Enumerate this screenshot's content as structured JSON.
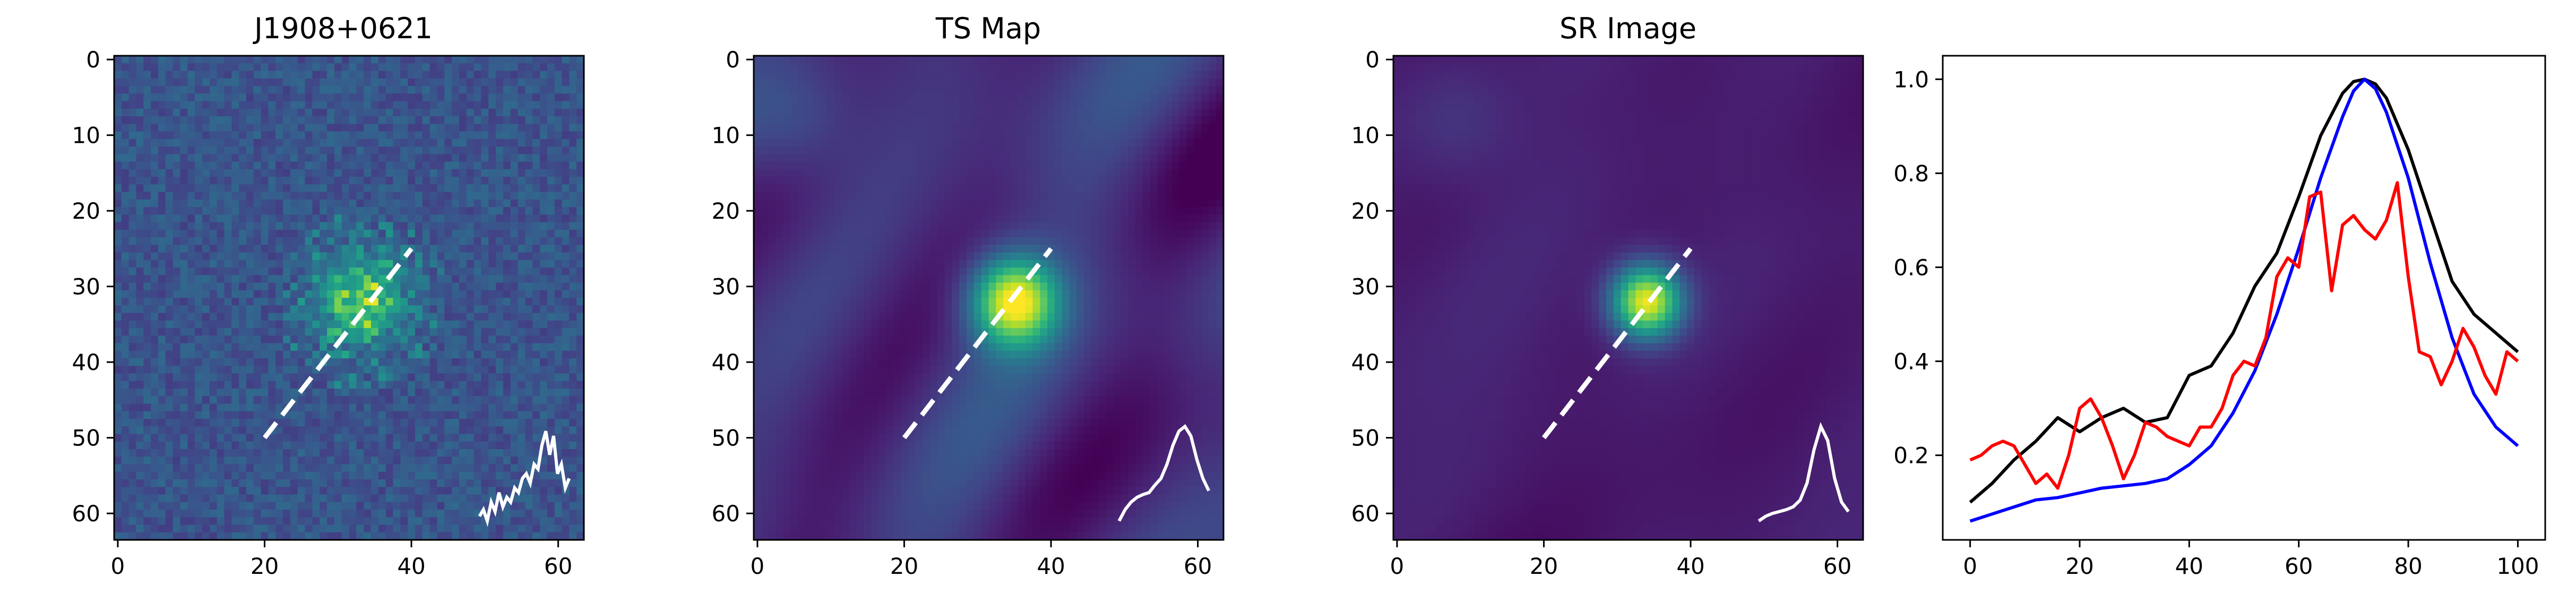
{
  "chart_data": [
    {
      "type": "heatmap",
      "title": "J1908+0621",
      "grid_size": 64,
      "colormap": "viridis",
      "style": "noisy counts",
      "source_center": [
        33,
        32
      ],
      "x_ticks": [
        0,
        20,
        40,
        60
      ],
      "y_ticks": [
        0,
        10,
        20,
        30,
        40,
        50,
        60
      ],
      "dashed_line": {
        "from": [
          20,
          50
        ],
        "to": [
          40,
          25
        ]
      },
      "inset_profile": [
        0.05,
        0.12,
        0.0,
        0.2,
        0.1,
        0.3,
        0.15,
        0.25,
        0.2,
        0.35,
        0.3,
        0.45,
        0.5,
        0.4,
        0.6,
        0.55,
        0.8,
        0.95,
        0.7,
        0.9,
        0.5,
        0.6,
        0.35,
        0.45
      ]
    },
    {
      "type": "heatmap",
      "title": "TS Map",
      "grid_size": 64,
      "colormap": "viridis",
      "style": "smooth",
      "source_center": [
        35,
        32
      ],
      "x_ticks": [
        0,
        20,
        40,
        60
      ],
      "y_ticks": [
        0,
        10,
        20,
        30,
        40,
        50,
        60
      ],
      "dashed_line": {
        "from": [
          20,
          50
        ],
        "to": [
          40,
          25
        ]
      },
      "inset_profile": [
        0.0,
        0.12,
        0.2,
        0.25,
        0.28,
        0.3,
        0.38,
        0.45,
        0.6,
        0.8,
        0.95,
        1.0,
        0.9,
        0.65,
        0.45,
        0.32
      ]
    },
    {
      "type": "heatmap",
      "title": "SR Image",
      "grid_size": 64,
      "colormap": "viridis",
      "style": "smooth, sharper",
      "source_center": [
        34,
        32
      ],
      "x_ticks": [
        0,
        20,
        40,
        60
      ],
      "y_ticks": [
        0,
        10,
        20,
        30,
        40,
        50,
        60
      ],
      "dashed_line": {
        "from": [
          20,
          50
        ],
        "to": [
          40,
          25
        ]
      },
      "inset_profile": [
        0.0,
        0.05,
        0.08,
        0.1,
        0.12,
        0.15,
        0.22,
        0.4,
        0.75,
        1.0,
        0.85,
        0.45,
        0.2,
        0.1
      ]
    },
    {
      "type": "line",
      "title": "",
      "xlim": [
        -5,
        105
      ],
      "ylim": [
        0.02,
        1.05
      ],
      "x_ticks": [
        0,
        20,
        40,
        60,
        80,
        100
      ],
      "y_ticks": [
        0.2,
        0.4,
        0.6,
        0.8,
        1.0
      ],
      "series": [
        {
          "color": "#000000",
          "x": [
            0,
            4,
            8,
            12,
            16,
            20,
            24,
            28,
            32,
            36,
            40,
            44,
            48,
            52,
            56,
            60,
            64,
            68,
            70,
            72,
            74,
            76,
            80,
            84,
            88,
            92,
            96,
            100
          ],
          "values": [
            0.1,
            0.14,
            0.19,
            0.23,
            0.28,
            0.25,
            0.28,
            0.3,
            0.27,
            0.28,
            0.37,
            0.39,
            0.46,
            0.56,
            0.63,
            0.75,
            0.88,
            0.97,
            0.995,
            1.0,
            0.99,
            0.96,
            0.85,
            0.71,
            0.57,
            0.5,
            0.46,
            0.42
          ]
        },
        {
          "color": "#0000ff",
          "x": [
            0,
            4,
            8,
            12,
            16,
            20,
            24,
            28,
            32,
            36,
            40,
            44,
            48,
            52,
            56,
            60,
            64,
            68,
            70,
            72,
            74,
            76,
            80,
            84,
            88,
            92,
            96,
            100
          ],
          "values": [
            0.06,
            0.075,
            0.09,
            0.105,
            0.11,
            0.12,
            0.13,
            0.135,
            0.14,
            0.15,
            0.18,
            0.22,
            0.29,
            0.38,
            0.5,
            0.64,
            0.79,
            0.92,
            0.975,
            1.0,
            0.98,
            0.93,
            0.79,
            0.61,
            0.45,
            0.33,
            0.26,
            0.22
          ]
        },
        {
          "color": "#ff0000",
          "x": [
            0,
            2,
            4,
            6,
            8,
            10,
            12,
            14,
            16,
            18,
            20,
            22,
            24,
            26,
            28,
            30,
            32,
            34,
            36,
            38,
            40,
            42,
            44,
            46,
            48,
            50,
            52,
            54,
            56,
            58,
            60,
            62,
            64,
            66,
            68,
            70,
            72,
            74,
            76,
            78,
            80,
            82,
            84,
            86,
            88,
            90,
            92,
            94,
            96,
            98,
            100
          ],
          "values": [
            0.19,
            0.2,
            0.22,
            0.23,
            0.22,
            0.18,
            0.14,
            0.16,
            0.13,
            0.2,
            0.3,
            0.32,
            0.28,
            0.22,
            0.15,
            0.2,
            0.27,
            0.26,
            0.24,
            0.23,
            0.22,
            0.26,
            0.26,
            0.3,
            0.37,
            0.4,
            0.39,
            0.45,
            0.58,
            0.62,
            0.6,
            0.75,
            0.76,
            0.55,
            0.69,
            0.71,
            0.68,
            0.66,
            0.7,
            0.78,
            0.58,
            0.42,
            0.41,
            0.35,
            0.4,
            0.47,
            0.43,
            0.37,
            0.33,
            0.42,
            0.4
          ]
        }
      ]
    }
  ]
}
